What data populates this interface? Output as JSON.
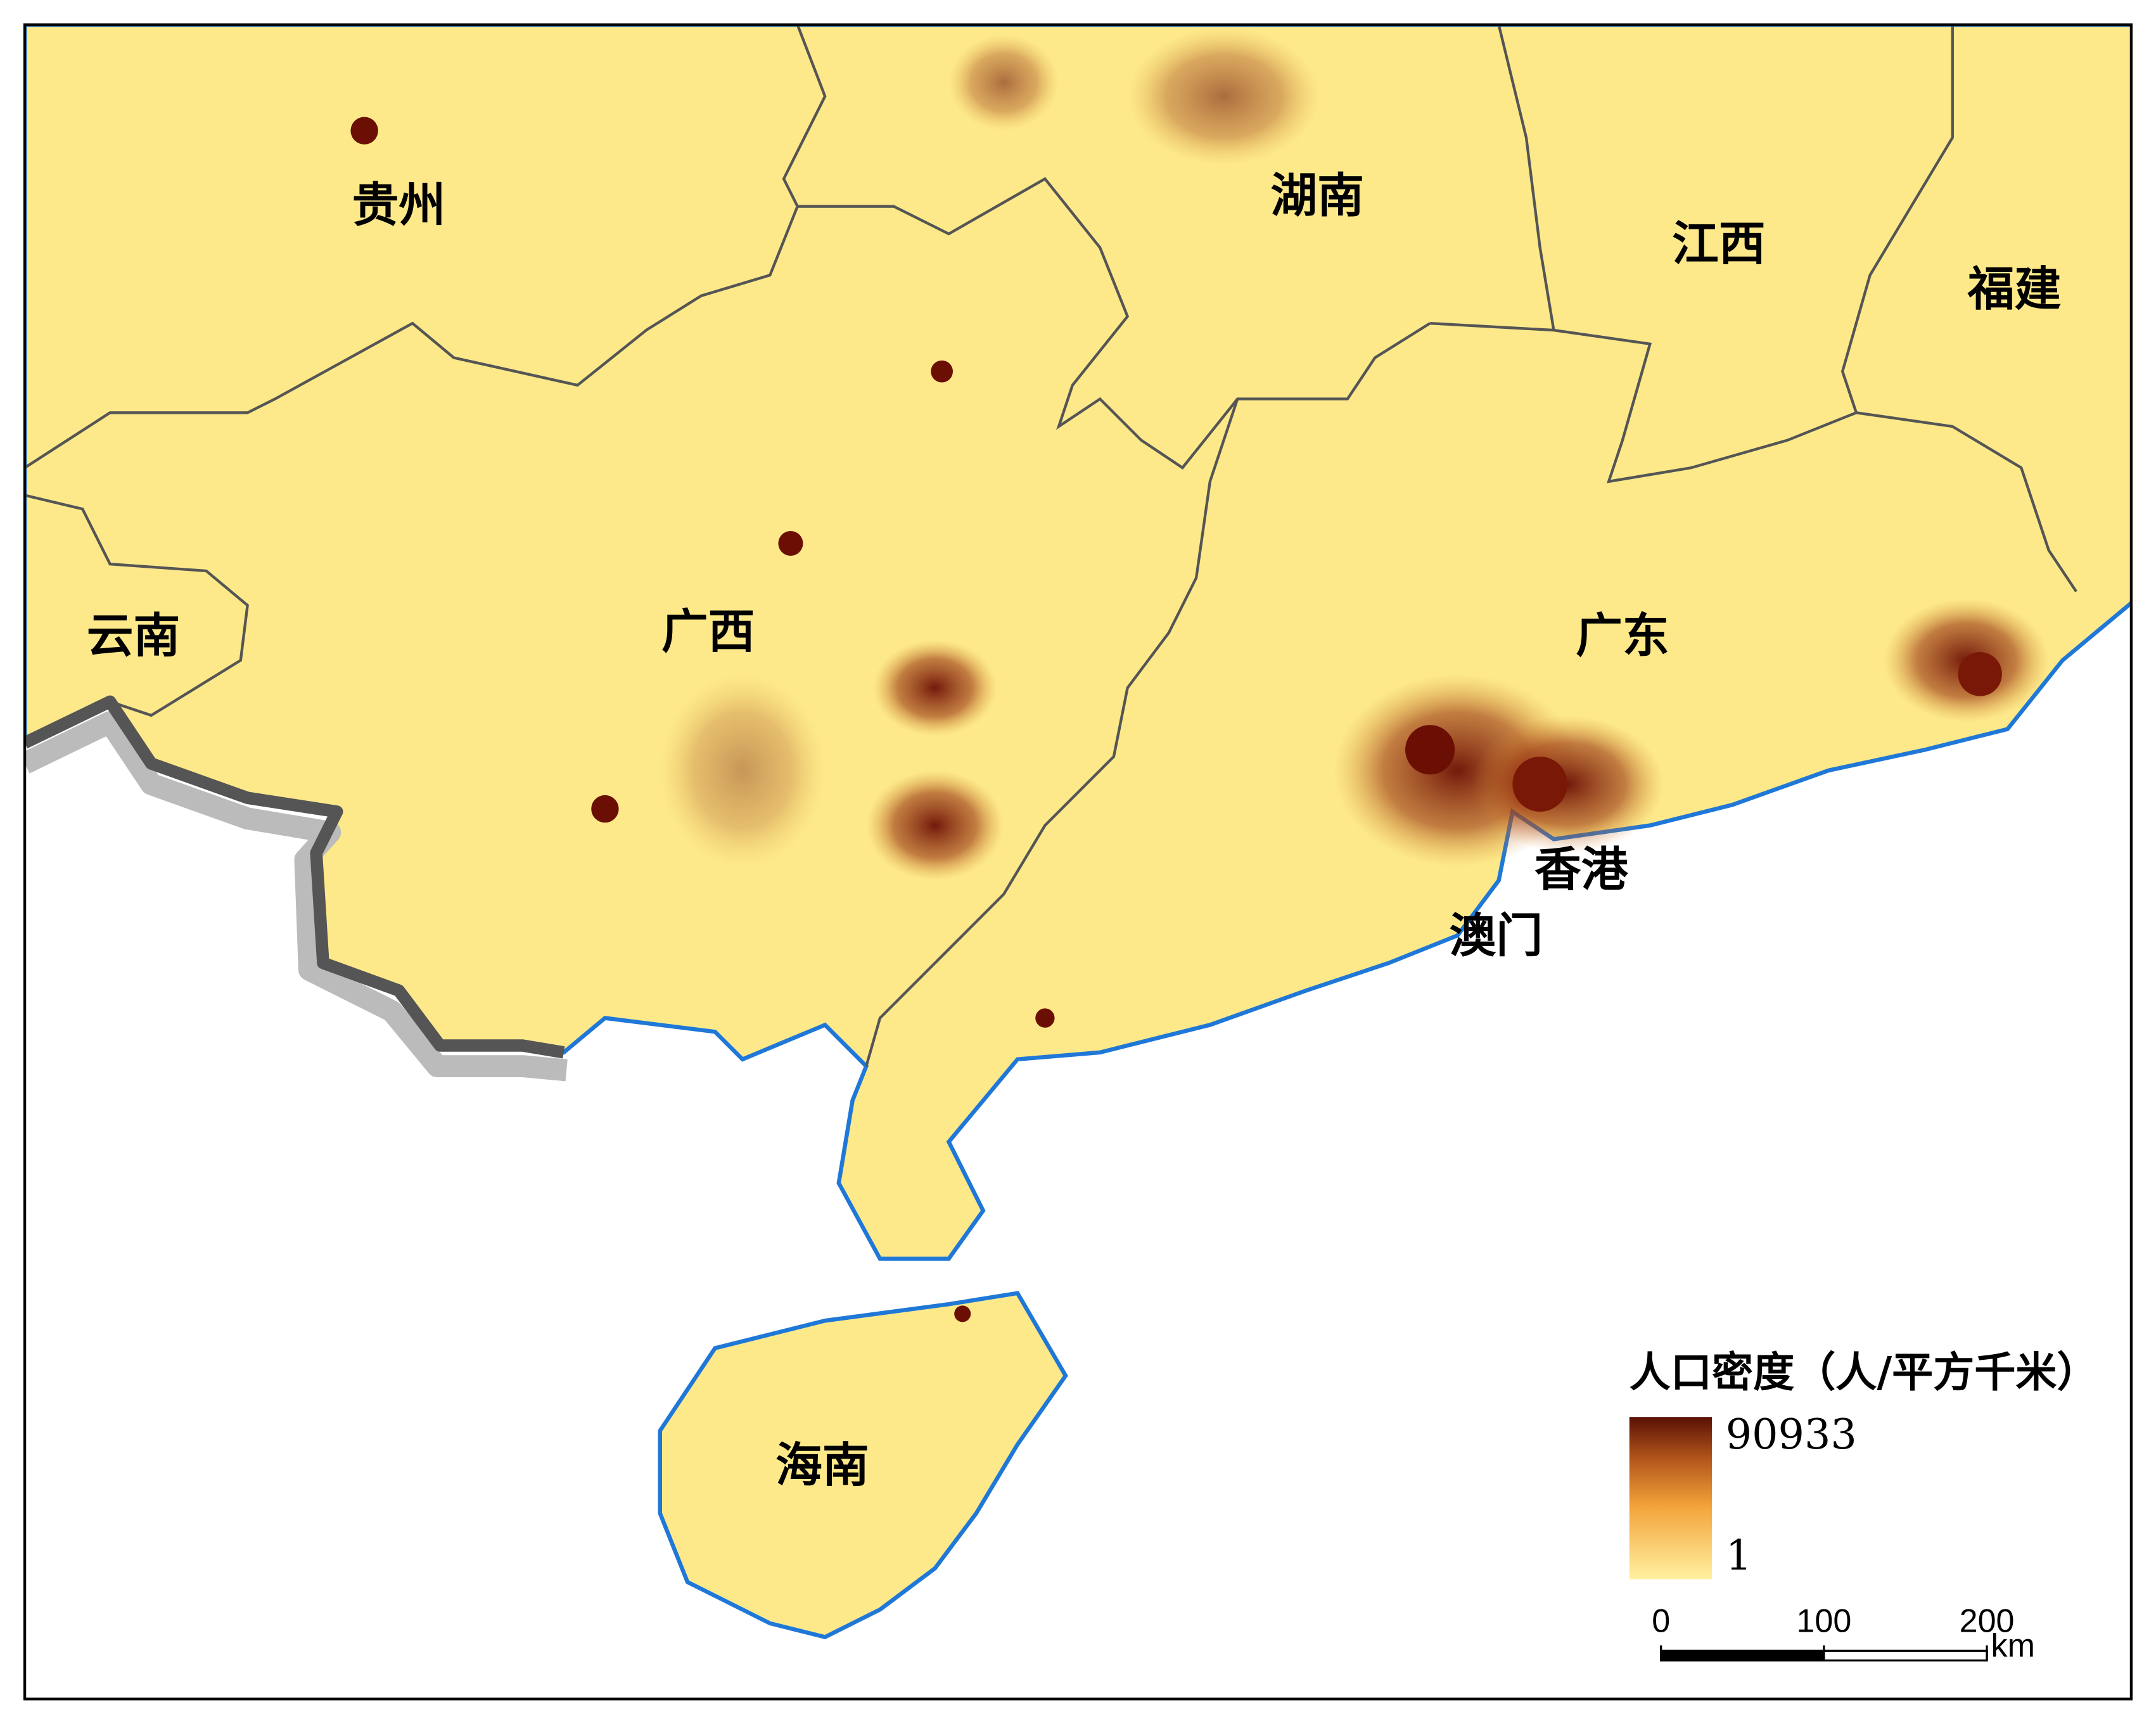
{
  "map": {
    "regions": [
      {
        "label": "贵州"
      },
      {
        "label": "湖南"
      },
      {
        "label": "江西"
      },
      {
        "label": "福建"
      },
      {
        "label": "云南"
      },
      {
        "label": "广西"
      },
      {
        "label": "广东"
      },
      {
        "label": "香港"
      },
      {
        "label": "澳门"
      },
      {
        "label": "海南"
      }
    ],
    "legend": {
      "title": "人口密度（人/平方千米）",
      "max": 90933,
      "min": 1
    },
    "scale_bar": {
      "ticks": [
        0,
        100,
        200
      ],
      "unit": "km"
    }
  }
}
